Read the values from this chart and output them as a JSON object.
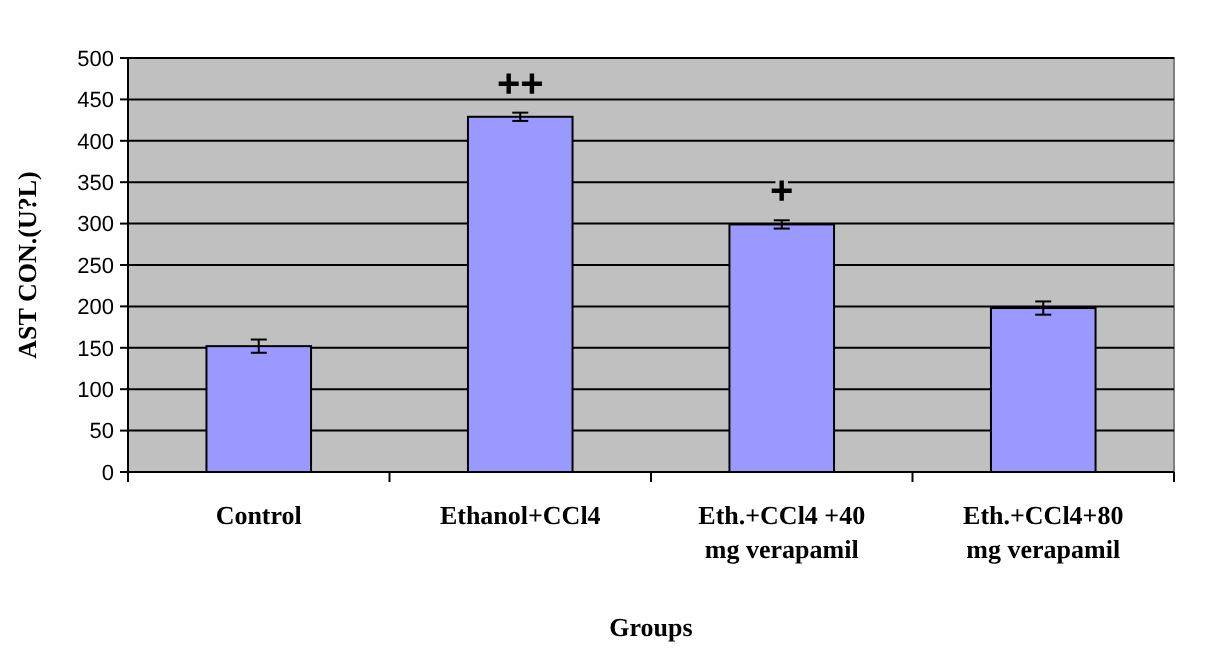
{
  "chart_data": {
    "type": "bar",
    "xlabel": "Groups",
    "ylabel": "AST CON.(U?L)",
    "categories": [
      "Control",
      "Ethanol+CCl4",
      "Eth.+CCl4 +40 mg verapamil",
      "Eth.+CCl4+80 mg verapamil"
    ],
    "values": [
      152,
      429,
      299,
      198
    ],
    "errors": [
      8,
      5,
      5,
      8
    ],
    "color": "#9999ff",
    "ylim": [
      0,
      500
    ],
    "yticks": [
      0,
      50,
      100,
      150,
      200,
      250,
      300,
      350,
      400,
      450,
      500
    ],
    "grid": "y",
    "annotations": [
      {
        "text": "++",
        "x": "Ethanol+CCl4",
        "y": 429
      },
      {
        "text": "+",
        "x": "Eth.+CCl4 +40 mg verapamil",
        "y": 299
      }
    ]
  }
}
